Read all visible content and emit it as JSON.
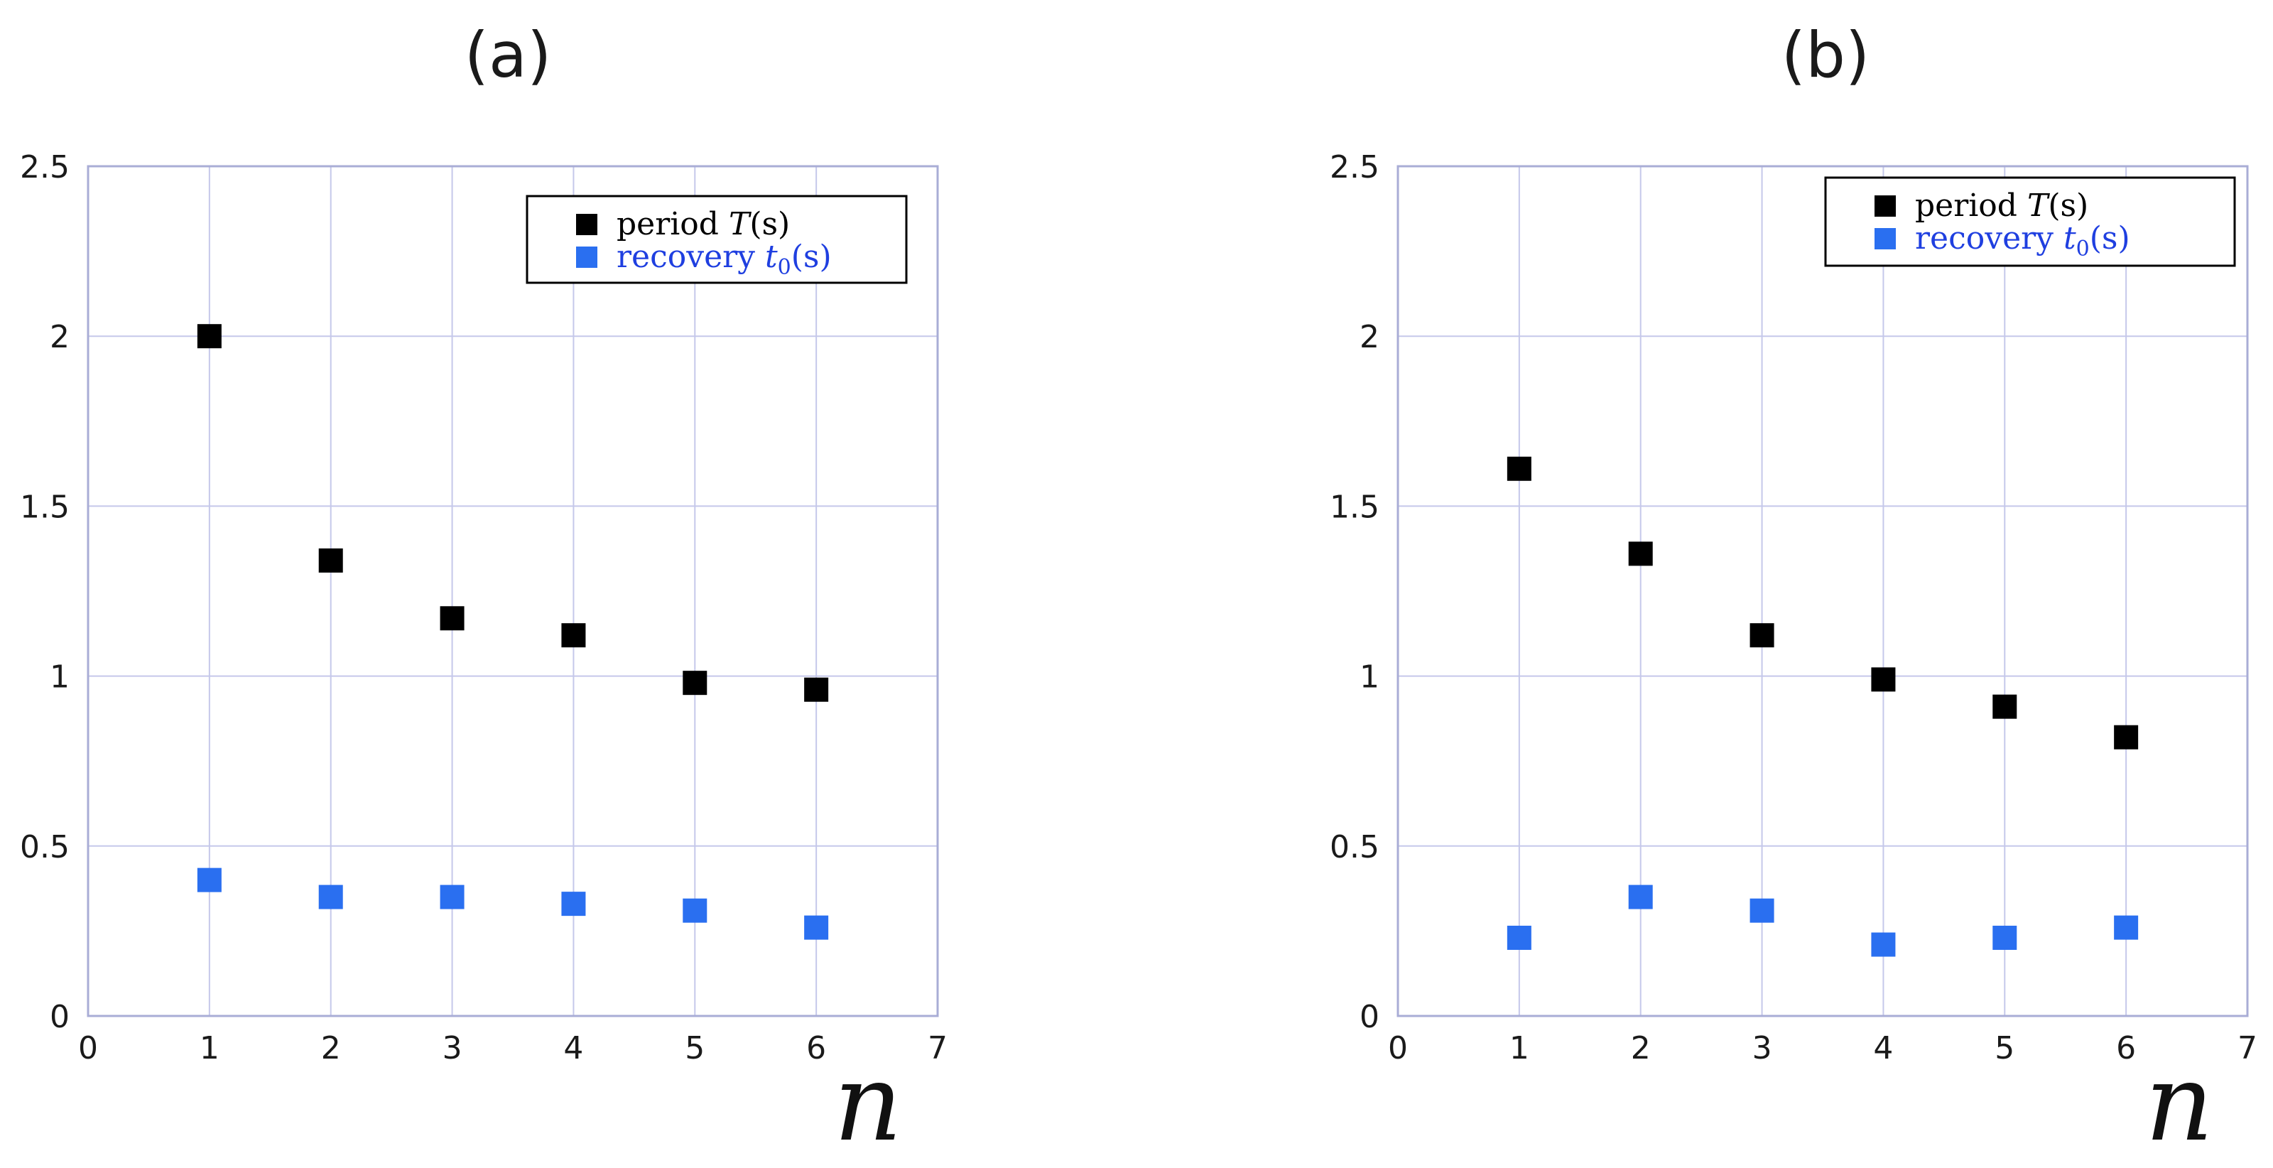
{
  "chart_data": [
    {
      "type": "scatter",
      "title": "(a)",
      "xlabel": "n",
      "ylabel": "",
      "xlim": [
        0,
        7
      ],
      "ylim": [
        0,
        2.5
      ],
      "xticks": [
        "0",
        "1",
        "2",
        "3",
        "4",
        "5",
        "6",
        "7"
      ],
      "yticks": [
        "0",
        "0.5",
        "1",
        "1.5",
        "2",
        "2.5"
      ],
      "grid": true,
      "legend_position": "top-right",
      "x": [
        1,
        2,
        3,
        4,
        5,
        6
      ],
      "series": [
        {
          "name": "period T(s)",
          "name_text": "period ",
          "name_var": "T",
          "name_sub": "",
          "name_unit": "(s)",
          "color": "#000000",
          "values": [
            2.0,
            1.34,
            1.17,
            1.12,
            0.98,
            0.96
          ]
        },
        {
          "name": "recovery t0(s)",
          "name_text": "recovery ",
          "name_var": "t",
          "name_sub": "0",
          "name_unit": "(s)",
          "color": "#2a6ff0",
          "text_color": "#1f3fe0",
          "values": [
            0.4,
            0.35,
            0.35,
            0.33,
            0.31,
            0.26
          ]
        }
      ]
    },
    {
      "type": "scatter",
      "title": "(b)",
      "xlabel": "n",
      "ylabel": "",
      "xlim": [
        0,
        7
      ],
      "ylim": [
        0,
        2.5
      ],
      "xticks": [
        "0",
        "1",
        "2",
        "3",
        "4",
        "5",
        "6",
        "7"
      ],
      "yticks": [
        "0",
        "0.5",
        "1",
        "1.5",
        "2",
        "2.5"
      ],
      "grid": true,
      "legend_position": "top-right",
      "x": [
        1,
        2,
        3,
        4,
        5,
        6
      ],
      "series": [
        {
          "name": "period T(s)",
          "name_text": "period ",
          "name_var": "T",
          "name_sub": "",
          "name_unit": "(s)",
          "color": "#000000",
          "values": [
            1.61,
            1.36,
            1.12,
            0.99,
            0.91,
            0.82
          ]
        },
        {
          "name": "recovery t0(s)",
          "name_text": "recovery ",
          "name_var": "t",
          "name_sub": "0",
          "name_unit": "(s)",
          "color": "#2a6ff0",
          "text_color": "#1f3fe0",
          "values": [
            0.23,
            0.35,
            0.31,
            0.21,
            0.23,
            0.26
          ]
        }
      ]
    }
  ]
}
